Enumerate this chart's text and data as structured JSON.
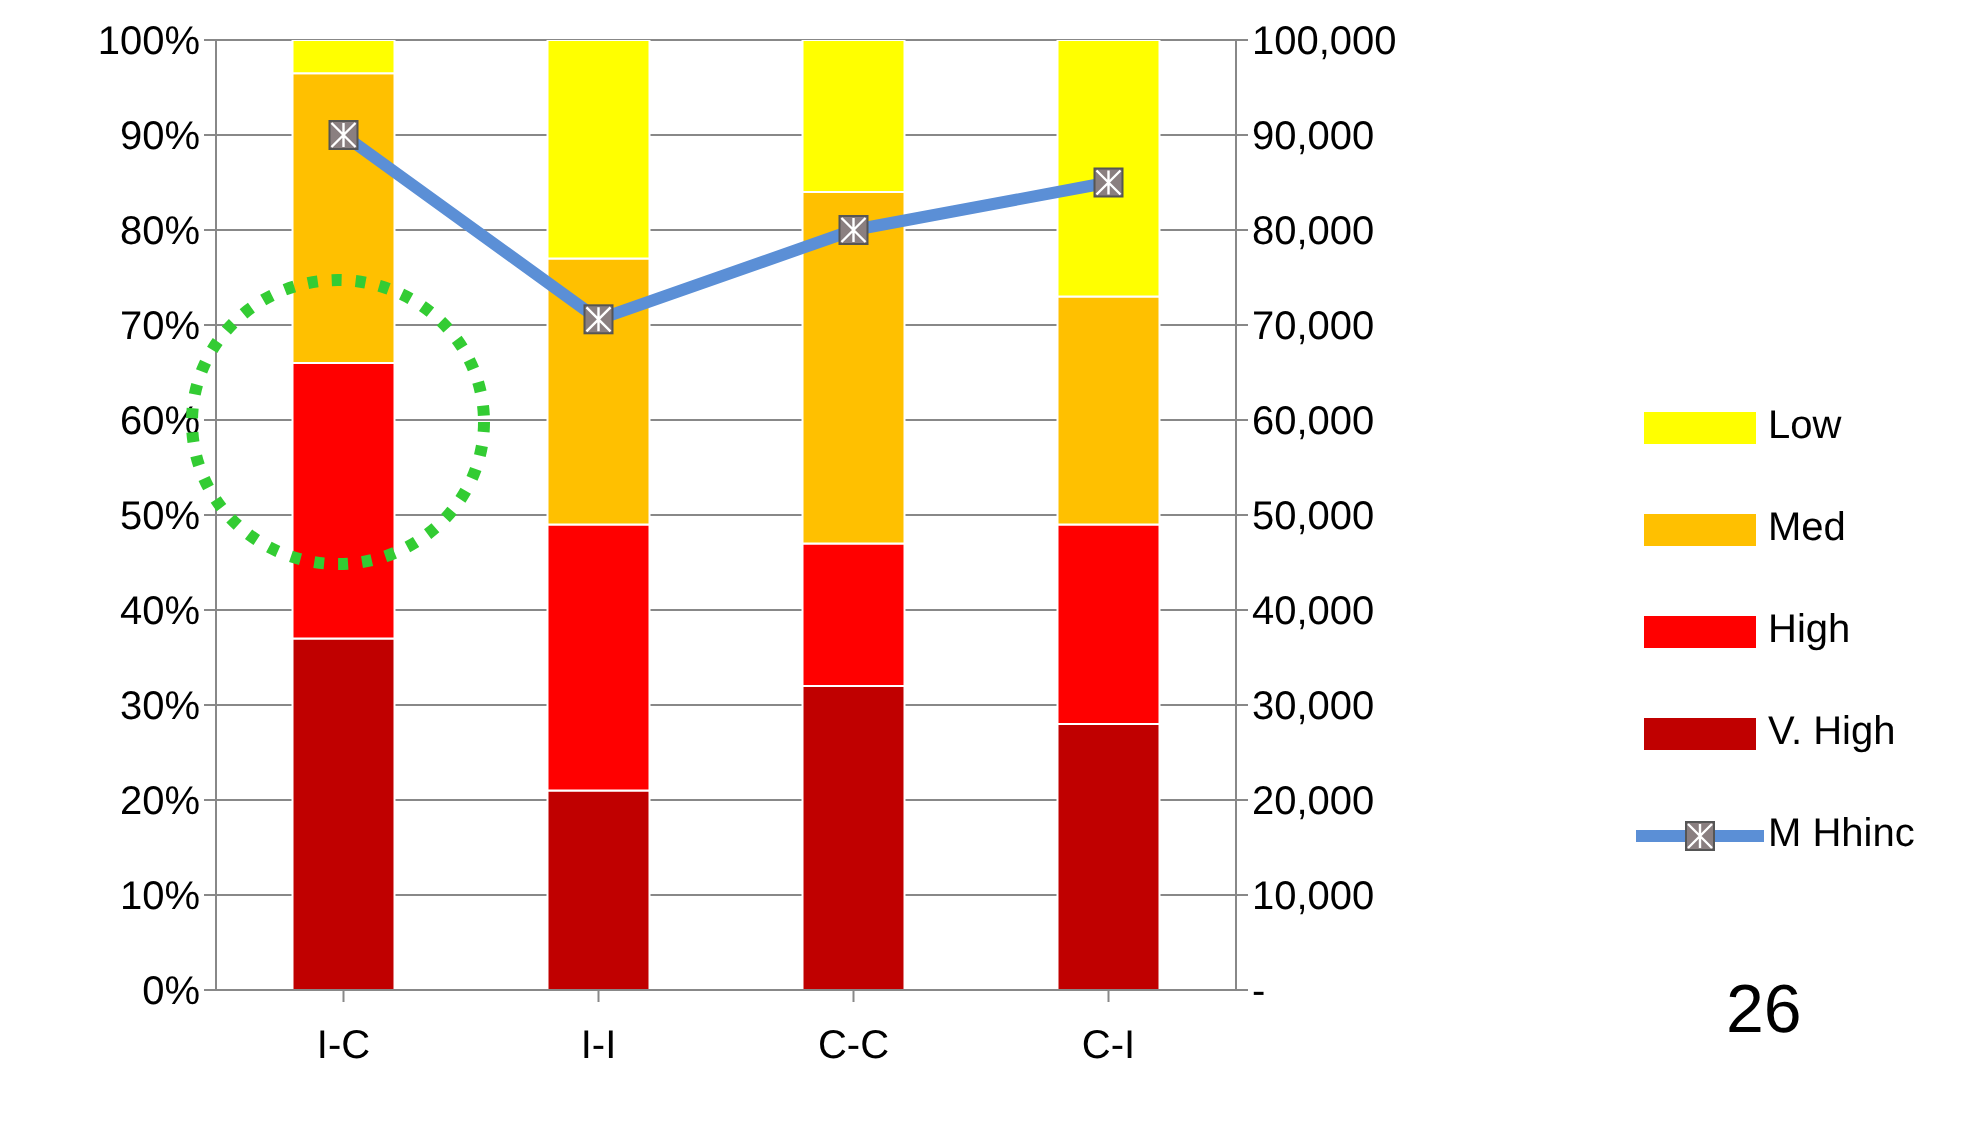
{
  "chart_data": {
    "type": "bar",
    "stacked": true,
    "categories": [
      "I-C",
      "I-I",
      "C-C",
      "C-I"
    ],
    "series": [
      {
        "name": "V. High",
        "color": "#c00000",
        "values": [
          37,
          21,
          32,
          28
        ]
      },
      {
        "name": "High",
        "color": "#ff0000",
        "values": [
          29,
          28,
          15,
          21
        ]
      },
      {
        "name": "Med",
        "color": "#ffc000",
        "values": [
          30.5,
          28,
          37,
          24
        ]
      },
      {
        "name": "Low",
        "color": "#ffff00",
        "values": [
          3.5,
          23,
          16,
          27
        ]
      },
      {
        "name": "M Hhinc",
        "type": "line",
        "axis": "y2",
        "color": "#5b8fd6",
        "marker": "square",
        "values": [
          90000,
          70600,
          80000,
          85000
        ]
      }
    ],
    "ylim": [
      0,
      100
    ],
    "yticks": [
      {
        "value": 0,
        "label": "0%"
      },
      {
        "value": 10,
        "label": "10%"
      },
      {
        "value": 20,
        "label": "20%"
      },
      {
        "value": 30,
        "label": "30%"
      },
      {
        "value": 40,
        "label": "40%"
      },
      {
        "value": 50,
        "label": "50%"
      },
      {
        "value": 60,
        "label": "60%"
      },
      {
        "value": 70,
        "label": "70%"
      },
      {
        "value": 80,
        "label": "80%"
      },
      {
        "value": 90,
        "label": "90%"
      },
      {
        "value": 100,
        "label": "100%"
      }
    ],
    "y2lim": [
      0,
      100000
    ],
    "y2ticks": [
      {
        "value": 0,
        "label": "-"
      },
      {
        "value": 10000,
        "label": "10,000"
      },
      {
        "value": 20000,
        "label": "20,000"
      },
      {
        "value": 30000,
        "label": "30,000"
      },
      {
        "value": 40000,
        "label": "40,000"
      },
      {
        "value": 50000,
        "label": "50,000"
      },
      {
        "value": 60000,
        "label": "60,000"
      },
      {
        "value": 70000,
        "label": "70,000"
      },
      {
        "value": 80000,
        "label": "80,000"
      },
      {
        "value": 90000,
        "label": "90,000"
      },
      {
        "value": 100000,
        "label": "100,000"
      }
    ],
    "grid": "y",
    "legend": "right",
    "annotations": [
      "26"
    ]
  }
}
